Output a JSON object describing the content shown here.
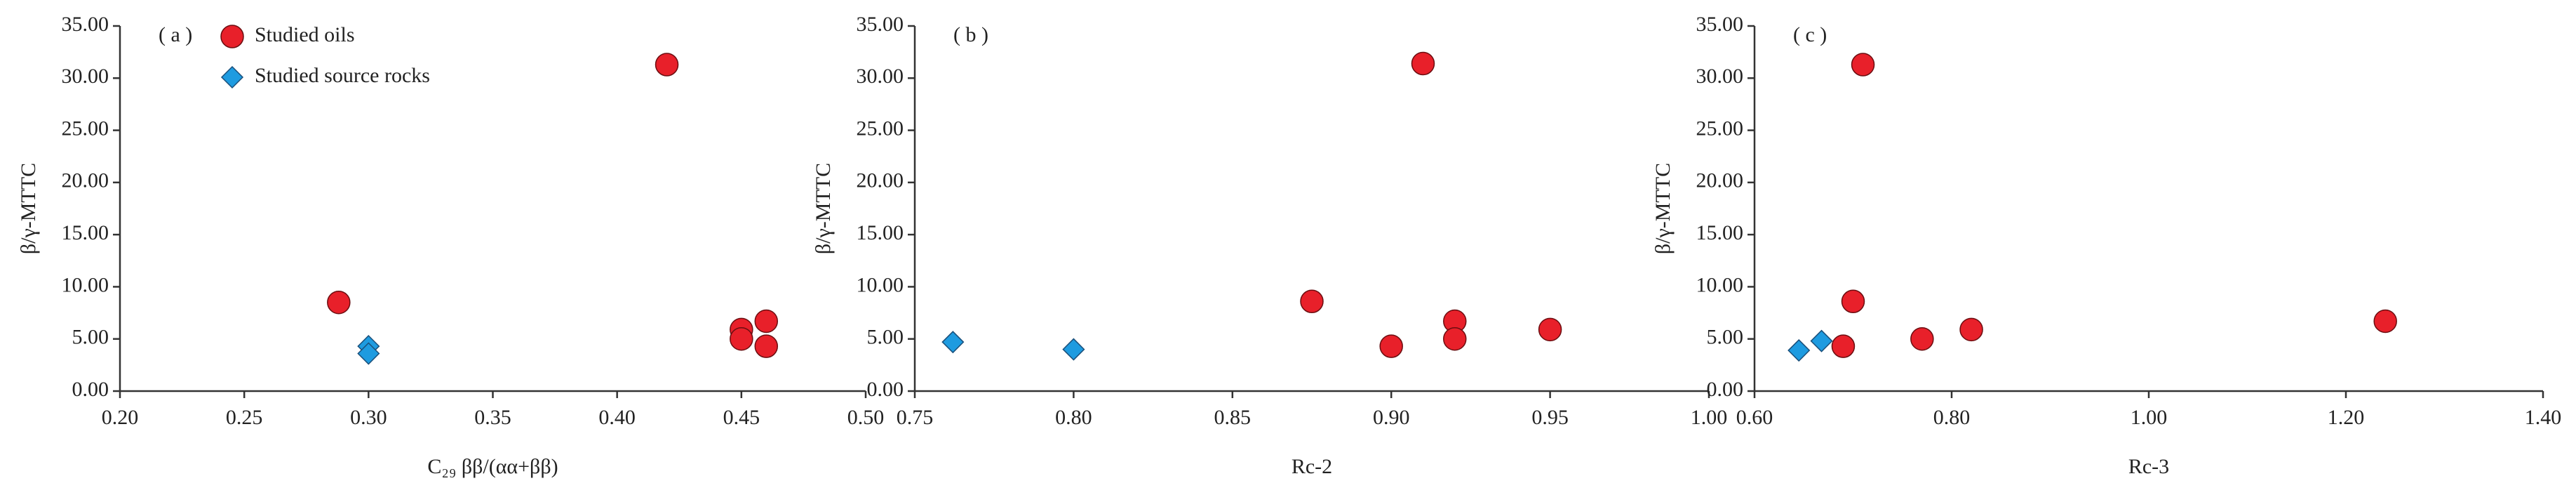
{
  "chart_data": [
    {
      "type": "scatter",
      "panel_label": "( a )",
      "xlabel": "C₂₉ ββ/(αα+ββ)",
      "ylabel": "β/γ-MTTC",
      "xlim": [
        0.2,
        0.5
      ],
      "ylim": [
        0,
        35
      ],
      "xticks": [
        {
          "value": 0.2,
          "label": "0.20"
        },
        0.25,
        {
          "value": 0.3,
          "label": "0.30"
        },
        0.35,
        {
          "value": 0.4,
          "label": "0.40"
        },
        0.45,
        {
          "value": 0.5,
          "label": "0.50"
        }
      ],
      "yticks": [
        {
          "value": 0,
          "label": "0.00"
        },
        {
          "value": 5,
          "label": "5.00"
        },
        {
          "value": 10,
          "label": "10.00"
        },
        {
          "value": 15,
          "label": "15.00"
        },
        {
          "value": 20,
          "label": "20.00"
        },
        {
          "value": 25,
          "label": "25.00"
        },
        {
          "value": 30,
          "label": "30.00"
        },
        {
          "value": 35,
          "label": "35.00"
        }
      ],
      "legend": "upper left",
      "series": [
        {
          "name": "Studied oils",
          "color": "#e8202a",
          "marker": "circle",
          "x": [
            0.288,
            0.42,
            0.45,
            0.45,
            0.46,
            0.46
          ],
          "values": [
            8.5,
            31.3,
            5.9,
            5.0,
            6.7,
            4.3
          ]
        },
        {
          "name": "Studied source rocks",
          "color": "#1e9be0",
          "marker": "diamond",
          "x": [
            0.3,
            0.3
          ],
          "values": [
            4.3,
            3.6
          ]
        }
      ]
    },
    {
      "type": "scatter",
      "panel_label": "( b )",
      "xlabel": "Rc-2",
      "ylabel": "β/γ-MTTC",
      "xlim": [
        0.75,
        1.0
      ],
      "ylim": [
        0,
        35
      ],
      "xticks": [
        0.75,
        {
          "value": 0.8,
          "label": "0.80"
        },
        0.85,
        {
          "value": 0.9,
          "label": "0.90"
        },
        0.95,
        {
          "value": 1.0,
          "label": "1.00"
        }
      ],
      "yticks": [
        {
          "value": 0,
          "label": "0.00"
        },
        {
          "value": 5,
          "label": "5.00"
        },
        {
          "value": 10,
          "label": "10.00"
        },
        {
          "value": 15,
          "label": "15.00"
        },
        {
          "value": 20,
          "label": "20.00"
        },
        {
          "value": 25,
          "label": "25.00"
        },
        {
          "value": 30,
          "label": "30.00"
        },
        {
          "value": 35,
          "label": "35.00"
        }
      ],
      "series": [
        {
          "color": "#e8202a",
          "marker": "circle",
          "x": [
            0.875,
            0.91,
            0.9,
            0.92,
            0.92,
            0.95
          ],
          "values": [
            8.6,
            31.4,
            4.3,
            6.7,
            5.0,
            5.9
          ]
        },
        {
          "color": "#1e9be0",
          "marker": "diamond",
          "x": [
            0.762,
            0.8
          ],
          "values": [
            4.7,
            4.0
          ]
        }
      ]
    },
    {
      "type": "scatter",
      "panel_label": "( c )",
      "xlabel": "Rc-3",
      "ylabel": "β/γ-MTTC",
      "xlim": [
        0.6,
        1.4
      ],
      "ylim": [
        0,
        35
      ],
      "xticks": [
        {
          "value": 0.6,
          "label": "0.60"
        },
        {
          "value": 0.8,
          "label": "0.80"
        },
        {
          "value": 1.0,
          "label": "1.00"
        },
        {
          "value": 1.2,
          "label": "1.20"
        },
        {
          "value": 1.4,
          "label": "1.40"
        }
      ],
      "yticks": [
        {
          "value": 0,
          "label": "0.00"
        },
        {
          "value": 5,
          "label": "5.00"
        },
        {
          "value": 10,
          "label": "10.00"
        },
        {
          "value": 15,
          "label": "15.00"
        },
        {
          "value": 20,
          "label": "20.00"
        },
        {
          "value": 25,
          "label": "25.00"
        },
        {
          "value": 30,
          "label": "30.00"
        },
        {
          "value": 35,
          "label": "35.00"
        }
      ],
      "series": [
        {
          "color": "#e8202a",
          "marker": "circle",
          "x": [
            0.71,
            0.7,
            0.69,
            0.77,
            0.82,
            1.24
          ],
          "values": [
            31.3,
            8.6,
            4.3,
            5.0,
            5.9,
            6.7
          ]
        },
        {
          "color": "#1e9be0",
          "marker": "diamond",
          "x": [
            0.645,
            0.668
          ],
          "values": [
            3.9,
            4.8
          ]
        }
      ]
    }
  ]
}
